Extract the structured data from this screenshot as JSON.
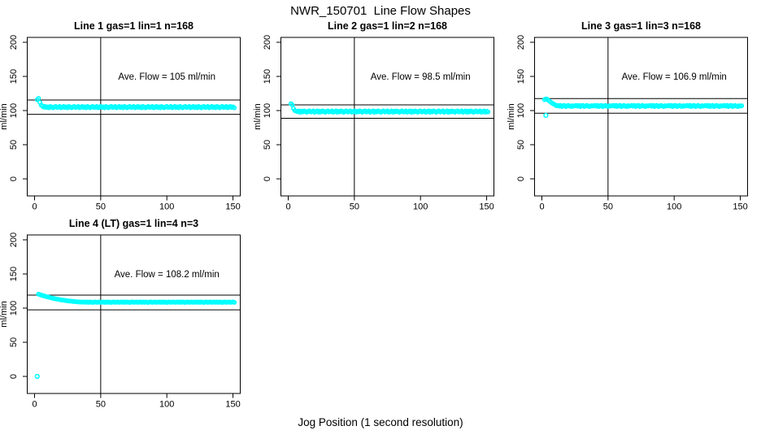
{
  "chart_data": {
    "type": "scatter",
    "title": "NWR_150701  Line Flow Shapes",
    "xlabel": "Jog Position (1 second resolution)",
    "ylabel": "ml/min",
    "xlim": [
      -6,
      156
    ],
    "ylim": [
      -24,
      210
    ],
    "xticks": [
      0,
      50,
      100,
      150
    ],
    "yticks": [
      0,
      50,
      100,
      150,
      200
    ],
    "grid": false,
    "point_color": "#00FFFF",
    "line_color": "#000000",
    "background": "#ffffff",
    "vline_x": 50,
    "annotation_anchor": {
      "x": 100,
      "y": 150
    },
    "subplots": [
      {
        "title": "Line 1 gas=1 lin=1 n=168",
        "annotation": "Ave. Flow =  105  ml/min",
        "ave_flow": 105,
        "ref_lines": [
          94.5,
          115.5
        ],
        "x_start": 2,
        "x_step": 1,
        "y": [
          116,
          118,
          112,
          108,
          106.5,
          105,
          106,
          104.5,
          105.5,
          104,
          106,
          105,
          104,
          105.5,
          106,
          104.5,
          105,
          106,
          104,
          105,
          106,
          104.5,
          105.5,
          104,
          106,
          105,
          104,
          105.5,
          106,
          104.5,
          105,
          106,
          104,
          105,
          106,
          104.5,
          105.5,
          104,
          106,
          105,
          104,
          105.5,
          106,
          104.5,
          105,
          106,
          104,
          105,
          106,
          104.5,
          105.5,
          104,
          106,
          105,
          104,
          105.5,
          106,
          104.5,
          105,
          106,
          104,
          105,
          106,
          104.5,
          105.5,
          104,
          106,
          105,
          104,
          105.5,
          106,
          104.5,
          105,
          106,
          104,
          105,
          106,
          104.5,
          105.5,
          104,
          106,
          105,
          104,
          105.5,
          106,
          104.5,
          105,
          106,
          104,
          105,
          106,
          104.5,
          105.5,
          104,
          106,
          105,
          104,
          105.5,
          106,
          104.5,
          105,
          106,
          104,
          105,
          106,
          104.5,
          105.5,
          104,
          106,
          105,
          104,
          105.5,
          106,
          104.5,
          105,
          106,
          104,
          105,
          106,
          104.5,
          105.5,
          104,
          106,
          105,
          104,
          105.5,
          106,
          104.5,
          105,
          106,
          104,
          105,
          106,
          104.5,
          105.5,
          104,
          106,
          105,
          104,
          105.5,
          106,
          104.5,
          105,
          106,
          104,
          105,
          106,
          104.5,
          105.5,
          104
        ],
        "outliers": []
      },
      {
        "title": "Line 2 gas=1 lin=2 n=168",
        "annotation": "Ave. Flow =  98.5  ml/min",
        "ave_flow": 98.5,
        "ref_lines": [
          88.7,
          108.4
        ],
        "x_start": 2,
        "x_step": 1,
        "y": [
          110,
          108.5,
          103,
          100,
          99,
          98.5,
          99.5,
          97.5,
          99,
          98,
          99.5,
          98.5,
          97.5,
          99,
          99.5,
          98,
          98.5,
          99.5,
          97.5,
          98.5,
          99.5,
          97.5,
          99,
          98,
          99.5,
          98.5,
          97.5,
          99,
          99.5,
          98,
          98.5,
          99.5,
          97.5,
          98.5,
          99.5,
          97.5,
          99,
          98,
          99.5,
          98.5,
          97.5,
          99,
          99.5,
          98,
          98.5,
          99.5,
          97.5,
          98.5,
          99.5,
          97.5,
          99,
          98,
          99.5,
          98.5,
          97.5,
          99,
          99.5,
          98,
          98.5,
          99.5,
          97.5,
          98.5,
          99.5,
          97.5,
          99,
          98,
          99.5,
          98.5,
          97.5,
          99,
          99.5,
          98,
          98.5,
          99.5,
          97.5,
          98.5,
          99.5,
          97.5,
          99,
          98,
          99.5,
          98.5,
          97.5,
          99,
          99.5,
          98,
          98.5,
          99.5,
          97.5,
          98.5,
          99.5,
          97.5,
          99,
          98,
          99.5,
          98.5,
          97.5,
          99,
          99.5,
          98,
          98.5,
          99.5,
          97.5,
          98.5,
          99.5,
          97.5,
          99,
          98,
          99.5,
          98.5,
          97.5,
          99,
          99.5,
          98,
          98.5,
          99.5,
          97.5,
          98.5,
          99.5,
          97.5,
          99,
          98,
          99.5,
          98.5,
          97.5,
          99,
          99.5,
          98,
          98.5,
          99.5,
          97.5,
          98.5,
          99.5,
          97.5,
          99,
          98,
          99.5,
          98.5,
          97.5,
          99,
          99.5,
          98,
          98.5,
          99.5,
          97.5,
          98.5,
          99.5,
          97.5,
          99,
          98
        ],
        "outliers": []
      },
      {
        "title": "Line 3 gas=1 lin=3 n=168",
        "annotation": "Ave. Flow =  106.9  ml/min",
        "ave_flow": 106.9,
        "ref_lines": [
          96.2,
          117.6
        ],
        "x_start": 2,
        "x_step": 1,
        "y": [
          116,
          117,
          116.5,
          115,
          113.5,
          112,
          110.5,
          109.5,
          108.5,
          107,
          107.5,
          106.5,
          107.5,
          106,
          107,
          107.5,
          106,
          106.5,
          107.5,
          106.5,
          106,
          107,
          106.5,
          107,
          107.5,
          106.5,
          107.5,
          106,
          107,
          107.5,
          106,
          106.5,
          107.5,
          106.5,
          106,
          107,
          106.5,
          107,
          107.5,
          106.5,
          107.5,
          106,
          107,
          107.5,
          106,
          106.5,
          107.5,
          106.5,
          106,
          107,
          106.5,
          107,
          107.5,
          106.5,
          107.5,
          106,
          107,
          107.5,
          106,
          106.5,
          107.5,
          106.5,
          106,
          107,
          106.5,
          107,
          107.5,
          106.5,
          107.5,
          106,
          107,
          107.5,
          106,
          106.5,
          107.5,
          106.5,
          106,
          107,
          106.5,
          107,
          107.5,
          106.5,
          107.5,
          106,
          107,
          107.5,
          106,
          106.5,
          107.5,
          106.5,
          106,
          107,
          106.5,
          107,
          107.5,
          106.5,
          107.5,
          106,
          107,
          107.5,
          106,
          106.5,
          107.5,
          106.5,
          106,
          107,
          106.5,
          107,
          107.5,
          106.5,
          107.5,
          106,
          107,
          107.5,
          106,
          106.5,
          107.5,
          106.5,
          106,
          107,
          106.5,
          107,
          107.5,
          106.5,
          107.5,
          106,
          107,
          107.5,
          106,
          106.5,
          107.5,
          106.5,
          106,
          107,
          106.5,
          107,
          107.5,
          106.5,
          107.5,
          106,
          107,
          107.5,
          106,
          106.5,
          107.5,
          106.5,
          106,
          107,
          106.5,
          107
        ],
        "outliers": [
          [
            3,
            93
          ]
        ]
      },
      {
        "title": "Line 4 (LT) gas=1 lin=4 n=3",
        "annotation": "Ave. Flow =  108.2  ml/min",
        "ave_flow": 108.2,
        "ref_lines": [
          97.4,
          119
        ],
        "x_start": 3,
        "x_step": 1,
        "y": [
          120.5,
          119.9,
          119.2,
          118.6,
          118,
          117.4,
          116.8,
          116.3,
          115.8,
          115.3,
          114.8,
          114.4,
          114,
          113.5,
          113.2,
          112.8,
          112.4,
          112.1,
          111.8,
          111.5,
          111.2,
          110.9,
          110.7,
          110.4,
          110.2,
          110,
          109.8,
          109.6,
          109.4,
          109.3,
          109.1,
          109,
          108.9,
          108.8,
          108.7,
          109,
          108.4,
          108.9,
          108.5,
          109.1,
          108.6,
          108.3,
          108.8,
          109,
          108.5,
          108.7,
          109.1,
          108.4,
          108.7,
          109,
          108.4,
          108.9,
          108.5,
          109.1,
          108.6,
          108.3,
          108.8,
          109,
          108.5,
          108.7,
          109.1,
          108.4,
          108.7,
          109,
          108.4,
          108.9,
          108.5,
          109.1,
          108.6,
          108.3,
          108.8,
          109,
          108.5,
          108.7,
          109.1,
          108.4,
          108.7,
          109,
          108.4,
          108.9,
          108.5,
          109.1,
          108.6,
          108.3,
          108.8,
          109,
          108.5,
          108.7,
          109.1,
          108.4,
          108.7,
          109,
          108.4,
          108.9,
          108.5,
          109.1,
          108.6,
          108.3,
          108.8,
          109,
          108.5,
          108.7,
          109.1,
          108.4,
          108.7,
          109,
          108.4,
          108.9,
          108.5,
          109.1,
          108.6,
          108.3,
          108.8,
          109,
          108.5,
          108.7,
          109.1,
          108.4,
          108.7,
          109,
          108.4,
          108.9,
          108.5,
          109.1,
          108.6,
          108.3,
          108.8,
          109,
          108.5,
          108.7,
          109.1,
          108.4,
          108.7,
          109,
          108.4,
          108.9,
          108.5,
          109.1,
          108.6,
          108.3,
          108.8,
          109,
          108.5,
          108.7,
          109.1,
          108.4,
          108.7,
          109,
          108.4
        ],
        "outliers": [
          [
            2,
            0
          ]
        ]
      }
    ]
  }
}
